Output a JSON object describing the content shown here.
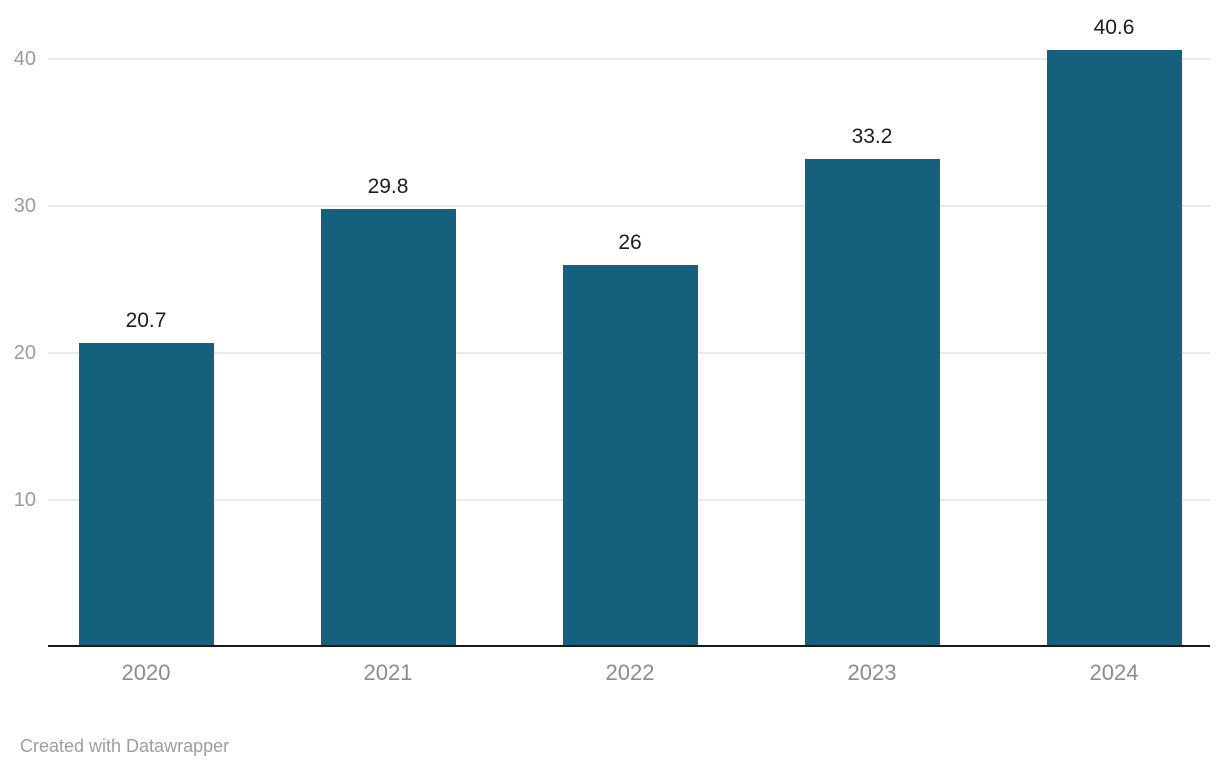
{
  "chart_data": {
    "type": "bar",
    "categories": [
      "2020",
      "2021",
      "2022",
      "2023",
      "2024"
    ],
    "values": [
      20.7,
      29.8,
      26,
      33.2,
      40.6
    ],
    "value_labels": [
      "20.7",
      "29.8",
      "26",
      "33.2",
      "40.6"
    ],
    "title": "",
    "xlabel": "",
    "ylabel": "",
    "ylim": [
      0,
      44
    ],
    "y_ticks": [
      10,
      20,
      30,
      40
    ],
    "y_tick_labels": [
      "10",
      "20",
      "30",
      "40"
    ],
    "grid": true,
    "legend": "none",
    "bar_color": "#15607d",
    "grid_color": "#e9e9e9",
    "axis_line_color": "#191919",
    "y_tick_color": "#9b9b9b",
    "x_label_color": "#8c8c8c",
    "value_label_color": "#1d1d1d"
  },
  "footer": {
    "attribution": "Created with Datawrapper"
  }
}
